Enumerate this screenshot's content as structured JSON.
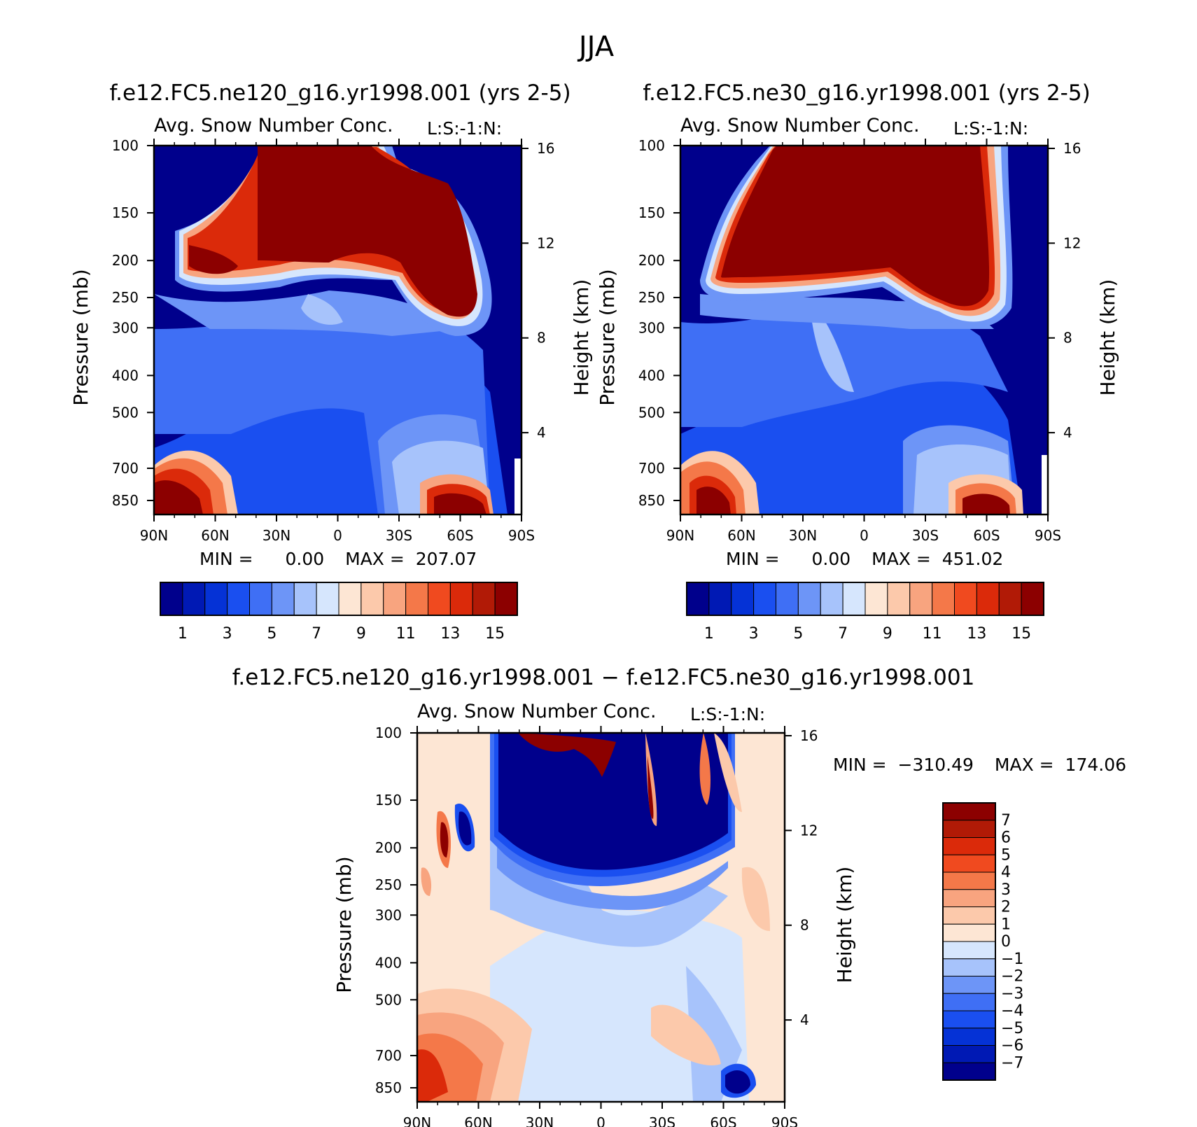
{
  "title": "JJA",
  "chart_data": [
    {
      "type": "heatmap",
      "title": "f.e12.FC5.ne120_g16.yr1998.001 (yrs 2-5)",
      "subtitle": "Avg. Snow Number Conc.",
      "units_label": "L:S:-1:N:",
      "ylabel": "Pressure (mb)",
      "ylabel_right": "Height (km)",
      "x_ticks": [
        "90N",
        "60N",
        "30N",
        "0",
        "30S",
        "60S",
        "90S"
      ],
      "y_ticks": [
        "100",
        "150",
        "200",
        "250",
        "300",
        "400",
        "500",
        "700",
        "850"
      ],
      "y_ticks_right": [
        "16",
        "12",
        "8",
        "4"
      ],
      "min_label": "MIN =",
      "min_value": "0.00",
      "max_label": "MAX =",
      "max_value": "207.07",
      "colorbar_labels": [
        "1",
        "3",
        "5",
        "7",
        "9",
        "11",
        "13",
        "15"
      ],
      "colors": [
        "#00008c",
        "#0019b4",
        "#0532d6",
        "#1a4ff0",
        "#3f6ff5",
        "#6d95f7",
        "#a7c3fb",
        "#d6e6fd",
        "#fde6d4",
        "#fcc9ab",
        "#f8a47f",
        "#f47849",
        "#f04a1f",
        "#db2a0a",
        "#b11a06",
        "#8c0000"
      ]
    },
    {
      "type": "heatmap",
      "title": "f.e12.FC5.ne30_g16.yr1998.001 (yrs 2-5)",
      "subtitle": "Avg. Snow Number Conc.",
      "units_label": "L:S:-1:N:",
      "ylabel": "Pressure (mb)",
      "ylabel_right": "Height (km)",
      "x_ticks": [
        "90N",
        "60N",
        "30N",
        "0",
        "30S",
        "60S",
        "90S"
      ],
      "y_ticks": [
        "100",
        "150",
        "200",
        "250",
        "300",
        "400",
        "500",
        "700",
        "850"
      ],
      "y_ticks_right": [
        "16",
        "12",
        "8",
        "4"
      ],
      "min_label": "MIN =",
      "min_value": "0.00",
      "max_label": "MAX =",
      "max_value": "451.02",
      "colorbar_labels": [
        "1",
        "3",
        "5",
        "7",
        "9",
        "11",
        "13",
        "15"
      ]
    },
    {
      "type": "heatmap",
      "title": "f.e12.FC5.ne120_g16.yr1998.001 - f.e12.FC5.ne30_g16.yr1998.001",
      "subtitle": "Avg. Snow Number Conc.",
      "units_label": "L:S:-1:N:",
      "ylabel": "Pressure (mb)",
      "ylabel_right": "Height (km)",
      "x_ticks": [
        "90N",
        "60N",
        "30N",
        "0",
        "30S",
        "60S",
        "90S"
      ],
      "y_ticks": [
        "100",
        "150",
        "200",
        "250",
        "300",
        "400",
        "500",
        "700",
        "850"
      ],
      "y_ticks_right": [
        "16",
        "12",
        "8",
        "4"
      ],
      "min_label": "MIN =",
      "min_value": "-310.49",
      "max_label": "MAX =",
      "max_value": "174.06",
      "colorbar_labels": [
        "7",
        "6",
        "5",
        "4",
        "3",
        "2",
        "1",
        "0",
        "-1",
        "-2",
        "-3",
        "-4",
        "-5",
        "-6",
        "-7"
      ],
      "colors": [
        "#8c0000",
        "#b11a06",
        "#db2a0a",
        "#f04a1f",
        "#f47849",
        "#f8a47f",
        "#fcc9ab",
        "#fde6d4",
        "#d6e6fd",
        "#a7c3fb",
        "#6d95f7",
        "#3f6ff5",
        "#1a4ff0",
        "#0532d6",
        "#0019b4",
        "#00008c"
      ]
    }
  ]
}
